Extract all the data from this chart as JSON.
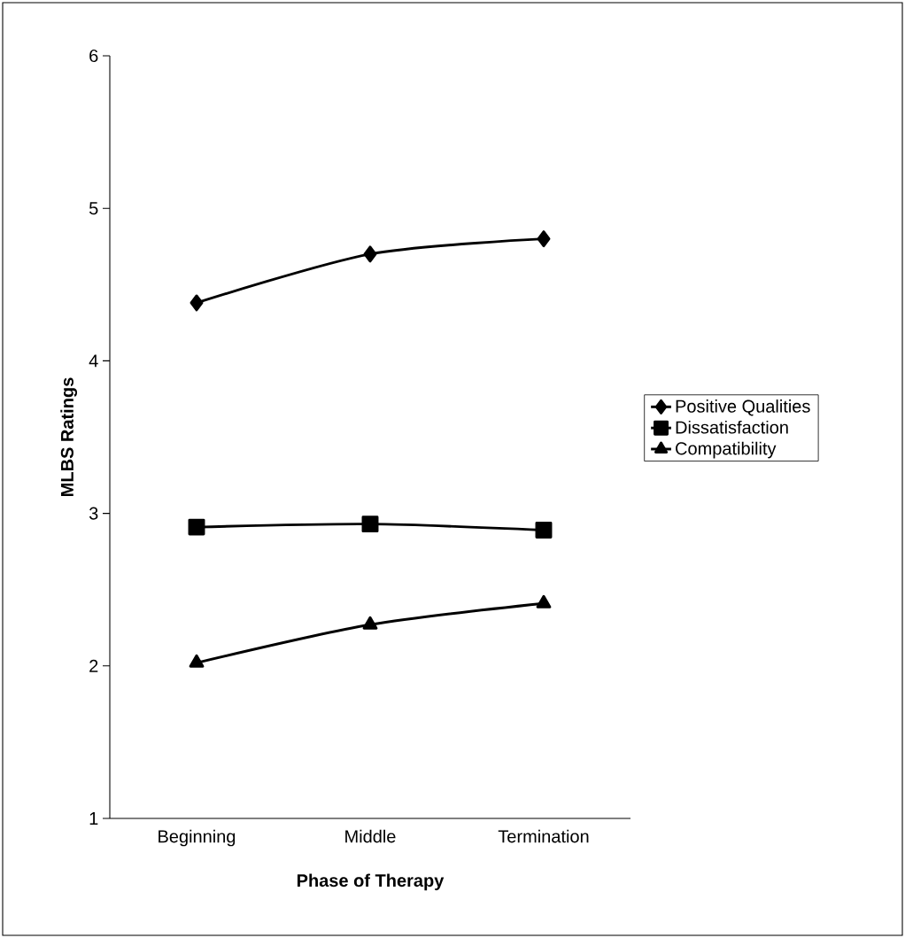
{
  "chart_data": {
    "type": "line",
    "xlabel": "Phase of Therapy",
    "ylabel": "MLBS Ratings",
    "categories": [
      "Beginning",
      "Middle",
      "Termination"
    ],
    "series": [
      {
        "name": "Positive Qualities",
        "color": "#000000",
        "marker": "diamond",
        "values": [
          4.38,
          4.7,
          4.8
        ]
      },
      {
        "name": "Dissatisfaction",
        "color": "#000000",
        "marker": "square",
        "values": [
          2.91,
          2.93,
          2.89
        ]
      },
      {
        "name": "Compatibility",
        "color": "#000000",
        "marker": "triangle",
        "values": [
          2.02,
          2.27,
          2.41
        ]
      }
    ],
    "ylim": [
      1,
      6
    ],
    "yticks": [
      1,
      2,
      3,
      4,
      5,
      6
    ],
    "grid": false,
    "legend": "right",
    "line_style": "solid"
  }
}
